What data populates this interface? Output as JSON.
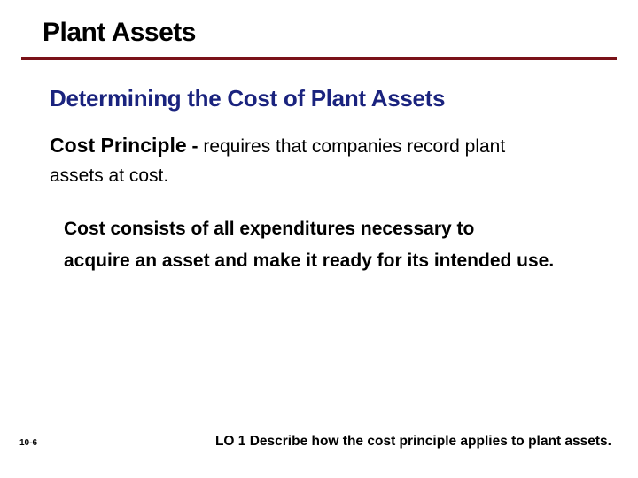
{
  "title": "Plant Assets",
  "subtitle": "Determining the Cost of Plant Assets",
  "principle": {
    "term": "Cost Principle",
    "dash": " - ",
    "definition_part1": "requires that companies record plant",
    "definition_part2": "assets at cost."
  },
  "cost_detail_line1": "Cost consists of all expenditures necessary to",
  "cost_detail_line2": "acquire an asset and make it ready for its intended use.",
  "page_number": "10-6",
  "learning_objective": "LO 1  Describe how the cost principle applies to plant assets.",
  "colors": {
    "rule": "#7a1218",
    "subtitle": "#1a237e",
    "text": "#000000",
    "background": "#ffffff"
  },
  "fonts": {
    "title_size": 30,
    "subtitle_size": 26,
    "body_size": 21,
    "pagenum_size": 10,
    "lo_size": 15.5
  }
}
